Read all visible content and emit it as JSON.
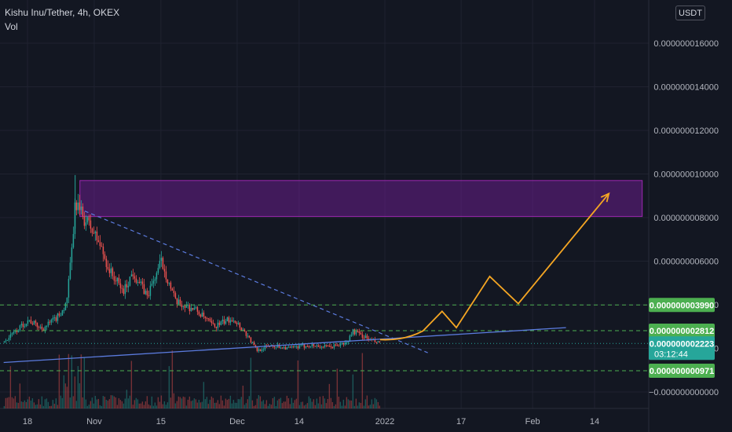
{
  "header": {
    "symbol": "Kishu Inu/Tether, 4h, OKEX",
    "volume_label": "Vol",
    "currency_button": "USDT"
  },
  "colors": {
    "background": "#131722",
    "grid": "#1f2230",
    "candle_up": "#26a69a",
    "candle_down": "#ef5350",
    "zone_fill": "#7b1fa2",
    "zone_border": "#9c27b0",
    "support_line": "#5b7bde",
    "green_level": "#4caf50",
    "projection": "#f5a623",
    "current_price": "#26a69a"
  },
  "chart_data": {
    "type": "candlestick",
    "title": "Kishu Inu/Tether, 4h, OKEX",
    "x_tick_labels": [
      "18",
      "Nov",
      "15",
      "Dec",
      "14",
      "2022",
      "17",
      "Feb",
      "14"
    ],
    "x_tick_dates": [
      "2021-10-18",
      "2021-11-01",
      "2021-11-15",
      "2021-12-01",
      "2021-12-14",
      "2022-01-01",
      "2022-01-17",
      "2022-02-01",
      "2022-02-14"
    ],
    "y_tick_labels": [
      "0.000000016000",
      "0.000000014000",
      "0.000000012000",
      "0.000000010000",
      "0.000000008000",
      "0.000000006000",
      "0.000000004000",
      "0.000000002000",
      "−0.000000000000"
    ],
    "y_range": [
      -2.5e-10,
      1.75e-08
    ],
    "grid": true,
    "price_path": [
      [
        "2021-10-13",
        2.3e-09
      ],
      [
        "2021-10-16",
        2.9e-09
      ],
      [
        "2021-10-18",
        3.3e-09
      ],
      [
        "2021-10-21",
        2.9e-09
      ],
      [
        "2021-10-24",
        3.4e-09
      ],
      [
        "2021-10-26",
        4e-09
      ],
      [
        "2021-10-27",
        6e-09
      ],
      [
        "2021-10-28",
        8.8e-09
      ],
      [
        "2021-10-29",
        8.2e-09
      ],
      [
        "2021-10-31",
        7.6e-09
      ],
      [
        "2021-11-02",
        6.8e-09
      ],
      [
        "2021-11-04",
        5.6e-09
      ],
      [
        "2021-11-07",
        4.6e-09
      ],
      [
        "2021-11-09",
        5.5e-09
      ],
      [
        "2021-11-12",
        4.4e-09
      ],
      [
        "2021-11-15",
        6e-09
      ],
      [
        "2021-11-18",
        4.1e-09
      ],
      [
        "2021-11-22",
        3.8e-09
      ],
      [
        "2021-11-26",
        3e-09
      ],
      [
        "2021-11-30",
        3.4e-09
      ],
      [
        "2021-12-03",
        2.6e-09
      ],
      [
        "2021-12-05",
        1.9e-09
      ],
      [
        "2021-12-08",
        2.15e-09
      ],
      [
        "2021-12-12",
        2e-09
      ],
      [
        "2021-12-16",
        2.15e-09
      ],
      [
        "2021-12-20",
        2.05e-09
      ],
      [
        "2021-12-24",
        2.25e-09
      ],
      [
        "2021-12-25",
        2.8e-09
      ],
      [
        "2021-12-27",
        2.6e-09
      ],
      [
        "2021-12-29",
        2.35e-09
      ],
      [
        "2021-12-31",
        2.22e-09
      ]
    ],
    "volume_label": "Vol",
    "horizontal_levels": [
      {
        "value": 3.99e-09,
        "label": "0.000000003990",
        "color": "#4caf50",
        "style": "dashed"
      },
      {
        "value": 2.812e-09,
        "label": "0.000000002812",
        "color": "#4caf50",
        "style": "dashed"
      },
      {
        "value": 9.71e-10,
        "label": "0.000000000971",
        "color": "#4caf50",
        "style": "dashed"
      }
    ],
    "current_price": {
      "value": 2.223e-09,
      "label": "0.000000002223",
      "countdown": "03:12:44"
    },
    "resistance_zone": {
      "x_start": "2021-10-29",
      "x_end": "2022-02-24",
      "y_low": 8.05e-09,
      "y_high": 9.7e-09
    },
    "descending_trendline": [
      [
        "2021-10-30",
        8.3e-09
      ],
      [
        "2022-01-10",
        1.8e-09
      ]
    ],
    "ascending_support": [
      [
        "2021-10-13",
        1.35e-09
      ],
      [
        "2022-02-08",
        2.95e-09
      ]
    ],
    "projection_path": [
      [
        "2021-12-31",
        2.4e-09
      ],
      [
        "2022-01-05",
        2.45e-09
      ],
      [
        "2022-01-09",
        2.8e-09
      ],
      [
        "2022-01-13",
        3.7e-09
      ],
      [
        "2022-01-16",
        2.95e-09
      ],
      [
        "2022-01-23",
        5.3e-09
      ],
      [
        "2022-01-29",
        4.05e-09
      ],
      [
        "2022-02-17",
        9.1e-09
      ]
    ]
  }
}
